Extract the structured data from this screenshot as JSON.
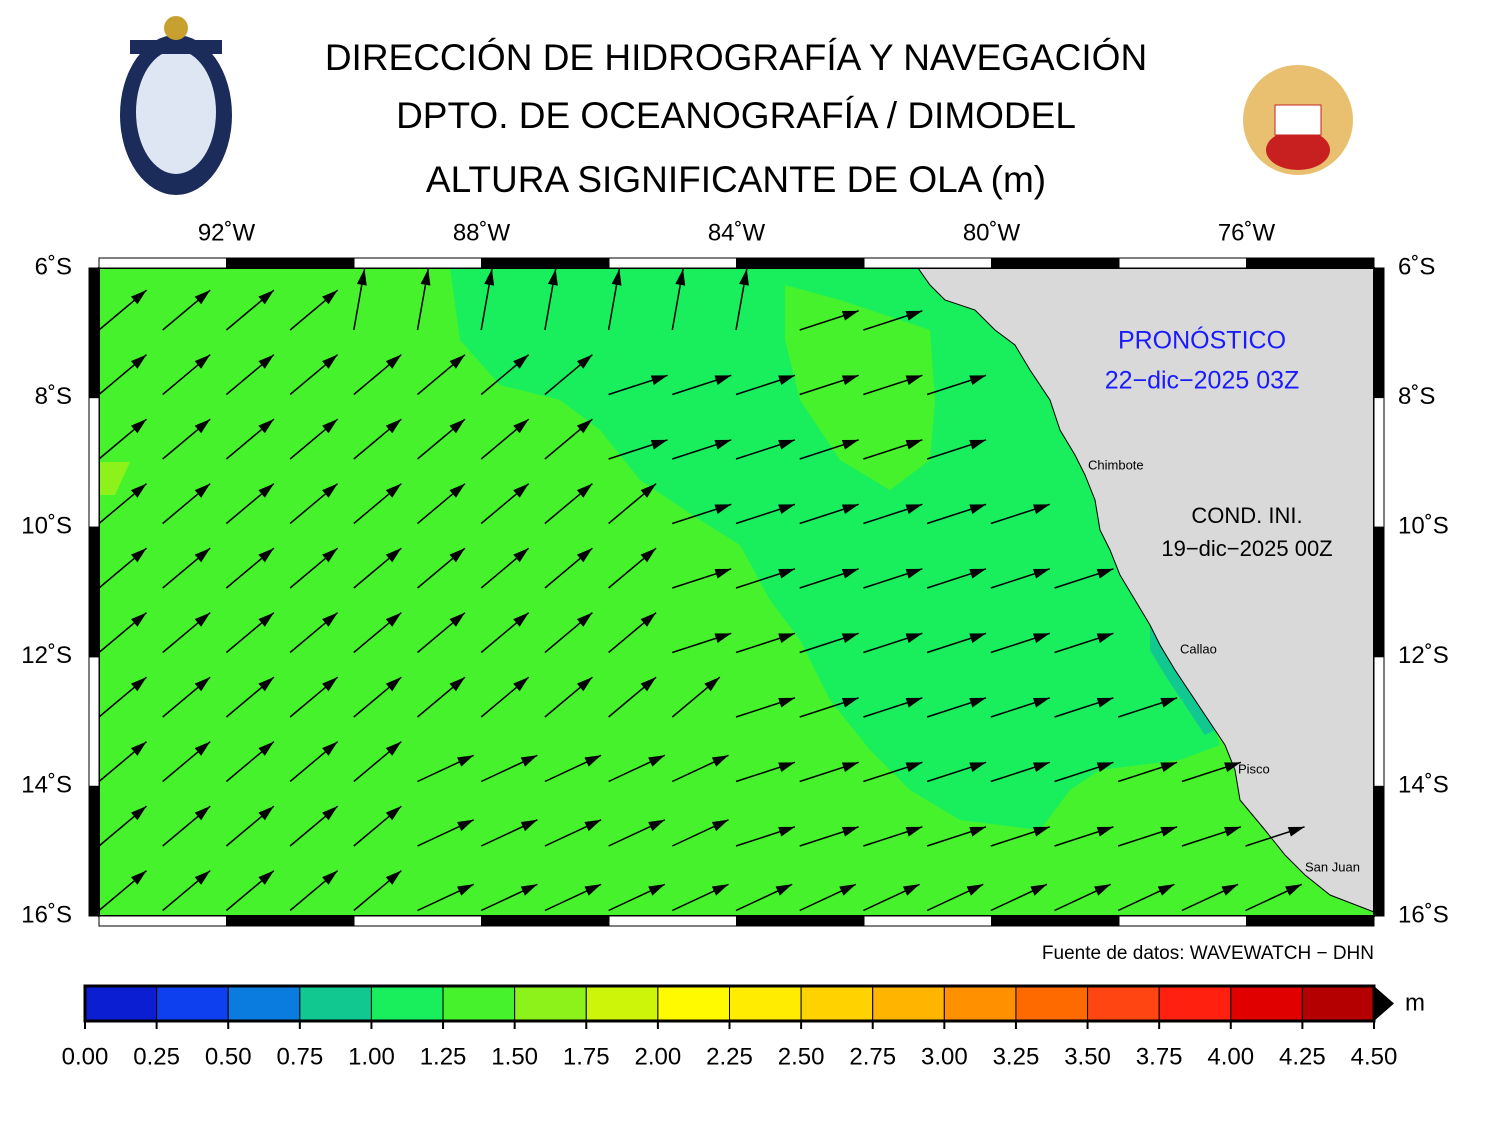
{
  "header": {
    "title_lines": [
      "DIRECCIÓN DE HIDROGRAFÍA Y NAVEGACIÓN",
      "DPTO. DE OCEANOGRAFÍA / DIMODEL",
      "ALTURA SIGNIFICANTE DE OLA (m)"
    ]
  },
  "map": {
    "xlim": [
      -94,
      -74
    ],
    "ylim": [
      -16,
      -6
    ],
    "xticks": [
      {
        "value": -92,
        "label": "92˚W"
      },
      {
        "value": -88,
        "label": "88˚W"
      },
      {
        "value": -84,
        "label": "84˚W"
      },
      {
        "value": -80,
        "label": "80˚W"
      },
      {
        "value": -76,
        "label": "76˚W"
      }
    ],
    "yticks": [
      {
        "value": -6,
        "label": "6˚S"
      },
      {
        "value": -8,
        "label": "8˚S"
      },
      {
        "value": -10,
        "label": "10˚S"
      },
      {
        "value": -12,
        "label": "12˚S"
      },
      {
        "value": -14,
        "label": "14˚S"
      },
      {
        "value": -16,
        "label": "16˚S"
      }
    ],
    "forecast_label": "PRONÓSTICO",
    "forecast_time": "22−dic−2025 03Z",
    "init_label": "COND. INI.",
    "init_time": "19−dic−2025 00Z",
    "cities": [
      "Chimbote",
      "Callao",
      "Pisco",
      "San Juan"
    ],
    "source": "Fuente de datos: WAVEWATCH − DHN"
  },
  "colorbar": {
    "unit": "m",
    "ticks": [
      {
        "value": 0,
        "label": "0.00"
      },
      {
        "value": 0.25,
        "label": "0.25"
      },
      {
        "value": 0.5,
        "label": "0.50"
      },
      {
        "value": 0.75,
        "label": "0.75"
      },
      {
        "value": 1,
        "label": "1.00"
      },
      {
        "value": 1.25,
        "label": "1.25"
      },
      {
        "value": 1.5,
        "label": "1.50"
      },
      {
        "value": 1.75,
        "label": "1.75"
      },
      {
        "value": 2,
        "label": "2.00"
      },
      {
        "value": 2.25,
        "label": "2.25"
      },
      {
        "value": 2.5,
        "label": "2.50"
      },
      {
        "value": 2.75,
        "label": "2.75"
      },
      {
        "value": 3,
        "label": "3.00"
      },
      {
        "value": 3.25,
        "label": "3.25"
      },
      {
        "value": 3.5,
        "label": "3.50"
      },
      {
        "value": 3.75,
        "label": "3.75"
      },
      {
        "value": 4,
        "label": "4.00"
      },
      {
        "value": 4.25,
        "label": "4.25"
      },
      {
        "value": 4.5,
        "label": "4.50"
      }
    ],
    "colors": [
      "#0c1ed2",
      "#0e40f0",
      "#0a7ce0",
      "#10c890",
      "#19ee5c",
      "#46f22c",
      "#8cf21a",
      "#ccf50a",
      "#fffa00",
      "#ffec00",
      "#ffd200",
      "#ffb400",
      "#ff9000",
      "#ff6a00",
      "#ff4612",
      "#ff2010",
      "#e00000",
      "#b40000"
    ]
  }
}
